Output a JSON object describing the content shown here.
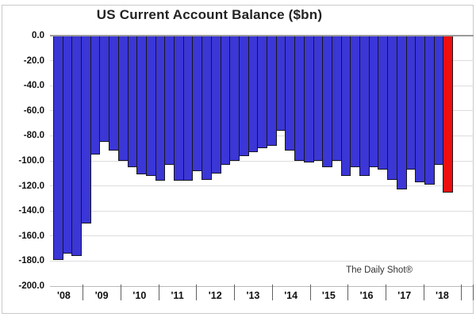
{
  "title": "US Current Account Balance ($bn)",
  "watermark": "The Daily Shot®",
  "colors": {
    "bar": "#3b36d6",
    "bar_border": "#17171c",
    "highlight_bar": "#ee0f0f",
    "gridline": "#dcdcdc",
    "zero_line": "#9a9a9a",
    "axis_text": "#111111",
    "title_text": "#232323"
  },
  "chart_data": {
    "type": "bar",
    "title": "US Current Account Balance ($bn)",
    "unit": "$bn",
    "legend": "none",
    "grid": "horizontal",
    "y_axis": {
      "min": -200,
      "max": 0,
      "step": 20,
      "tick_labels": [
        "0.0",
        "-20.0",
        "-40.0",
        "-60.0",
        "-80.0",
        "-100.0",
        "-120.0",
        "-140.0",
        "-160.0",
        "-180.0",
        "-200.0"
      ]
    },
    "x_axis": {
      "year_labels": [
        "'08",
        "'09",
        "'10",
        "'11",
        "'12",
        "'13",
        "'14",
        "'15",
        "'16",
        "'17",
        "'18"
      ]
    },
    "series": [
      {
        "name": "US Current Account Balance",
        "points": [
          {
            "quarter": "2008 Q1",
            "value": -179
          },
          {
            "quarter": "2008 Q2",
            "value": -174
          },
          {
            "quarter": "2008 Q3",
            "value": -176
          },
          {
            "quarter": "2008 Q4",
            "value": -150
          },
          {
            "quarter": "2009 Q1",
            "value": -95
          },
          {
            "quarter": "2009 Q2",
            "value": -85
          },
          {
            "quarter": "2009 Q3",
            "value": -92
          },
          {
            "quarter": "2009 Q4",
            "value": -100
          },
          {
            "quarter": "2010 Q1",
            "value": -105
          },
          {
            "quarter": "2010 Q2",
            "value": -111
          },
          {
            "quarter": "2010 Q3",
            "value": -112
          },
          {
            "quarter": "2010 Q4",
            "value": -116
          },
          {
            "quarter": "2011 Q1",
            "value": -103
          },
          {
            "quarter": "2011 Q2",
            "value": -116
          },
          {
            "quarter": "2011 Q3",
            "value": -116
          },
          {
            "quarter": "2011 Q4",
            "value": -108
          },
          {
            "quarter": "2012 Q1",
            "value": -115
          },
          {
            "quarter": "2012 Q2",
            "value": -110
          },
          {
            "quarter": "2012 Q3",
            "value": -103
          },
          {
            "quarter": "2012 Q4",
            "value": -100
          },
          {
            "quarter": "2013 Q1",
            "value": -96
          },
          {
            "quarter": "2013 Q2",
            "value": -93
          },
          {
            "quarter": "2013 Q3",
            "value": -90
          },
          {
            "quarter": "2013 Q4",
            "value": -88
          },
          {
            "quarter": "2014 Q1",
            "value": -76
          },
          {
            "quarter": "2014 Q2",
            "value": -92
          },
          {
            "quarter": "2014 Q3",
            "value": -100
          },
          {
            "quarter": "2014 Q4",
            "value": -101
          },
          {
            "quarter": "2015 Q1",
            "value": -100
          },
          {
            "quarter": "2015 Q2",
            "value": -105
          },
          {
            "quarter": "2015 Q3",
            "value": -100
          },
          {
            "quarter": "2015 Q4",
            "value": -112
          },
          {
            "quarter": "2016 Q1",
            "value": -105
          },
          {
            "quarter": "2016 Q2",
            "value": -112
          },
          {
            "quarter": "2016 Q3",
            "value": -105
          },
          {
            "quarter": "2016 Q4",
            "value": -107
          },
          {
            "quarter": "2017 Q1",
            "value": -115
          },
          {
            "quarter": "2017 Q2",
            "value": -123
          },
          {
            "quarter": "2017 Q3",
            "value": -107
          },
          {
            "quarter": "2017 Q4",
            "value": -117
          },
          {
            "quarter": "2018 Q1",
            "value": -119
          },
          {
            "quarter": "2018 Q2",
            "value": -103
          },
          {
            "quarter": "2018 Q3",
            "value": -125,
            "highlight": true
          }
        ]
      }
    ]
  }
}
